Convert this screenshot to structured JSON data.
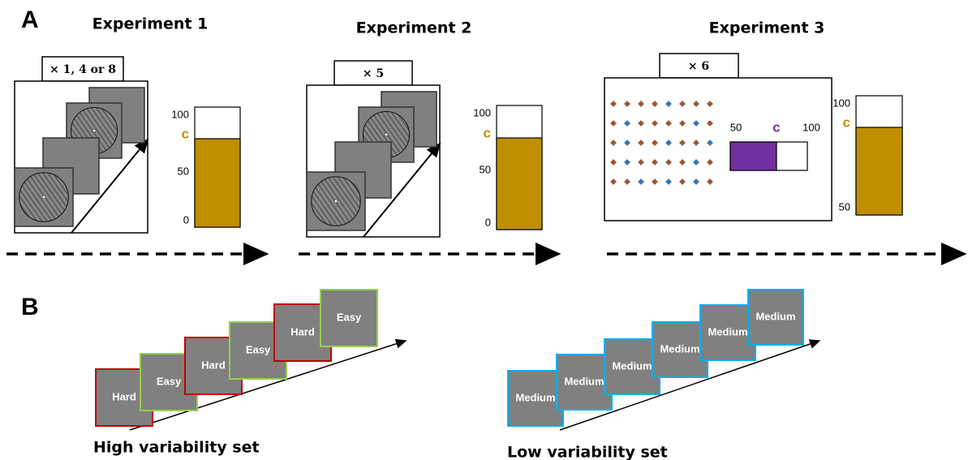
{
  "panel_a": {
    "label": "A",
    "experiments": [
      {
        "title": "Experiment 1",
        "repeat": "× 1, 4 or 8",
        "scale": {
          "top": "100",
          "criterion": "c",
          "mid": "50",
          "bottom": "0"
        }
      },
      {
        "title": "Experiment 2",
        "repeat": "× 5",
        "scale": {
          "top": "100",
          "criterion": "c",
          "mid": "50",
          "bottom": "0"
        }
      },
      {
        "title": "Experiment 3",
        "repeat": "× 6",
        "inner_scale": {
          "left": "50",
          "criterion": "c",
          "right": "100"
        },
        "scale": {
          "top": "100",
          "criterion": "c",
          "bottom": "50"
        }
      }
    ]
  },
  "panel_b": {
    "label": "B",
    "sets": [
      {
        "title": "High variability set",
        "cards": [
          "Hard",
          "Easy",
          "Hard",
          "Easy",
          "Hard",
          "Easy"
        ]
      },
      {
        "title": "Low variability set",
        "cards": [
          "Medium",
          "Medium",
          "Medium",
          "Medium",
          "Medium",
          "Medium"
        ]
      }
    ]
  }
}
